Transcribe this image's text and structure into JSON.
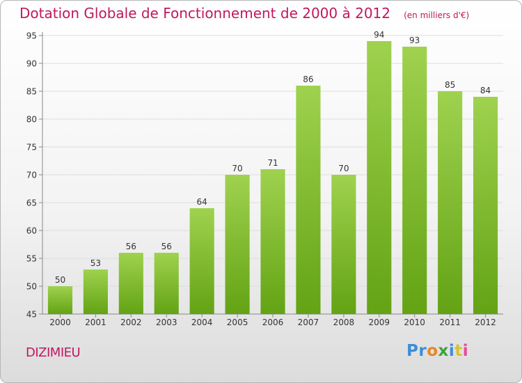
{
  "title": "Dotation Globale de Fonctionnement de 2000 à 2012",
  "unit_note": "(en milliers d'€)",
  "commune": "DIZIMIEU",
  "brand": {
    "letters": [
      "P",
      "r",
      "o",
      "x",
      "i",
      "t",
      "i"
    ],
    "colors": [
      "#3b8ed8",
      "#3b8ed8",
      "#e8862a",
      "#3aa33a",
      "#3b8ed8",
      "#d8c22a",
      "#e84a9a"
    ]
  },
  "colors": {
    "title": "#c0185e",
    "bar_top": "#9fd24f",
    "bar_bottom": "#63a314",
    "grid": "#dddddd"
  },
  "chart_data": {
    "type": "bar",
    "categories": [
      "2000",
      "2001",
      "2002",
      "2003",
      "2004",
      "2005",
      "2006",
      "2007",
      "2008",
      "2009",
      "2010",
      "2011",
      "2012"
    ],
    "values": [
      50,
      53,
      56,
      56,
      64,
      70,
      71,
      86,
      70,
      94,
      93,
      85,
      84
    ],
    "ylim": [
      45,
      95
    ],
    "yticks": [
      45,
      50,
      55,
      60,
      65,
      70,
      75,
      80,
      85,
      90,
      95
    ],
    "grid": true,
    "data_labels": true
  }
}
